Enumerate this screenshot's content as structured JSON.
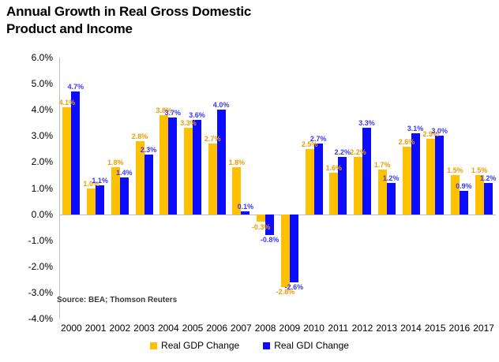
{
  "title_lines": [
    "Annual Growth in Real Gross Domestic",
    "Product and Income"
  ],
  "source_note": "Source: BEA; Thomson Reuters",
  "colors": {
    "gdp_bar": "#FFC000",
    "gdi_bar": "#0B0BFF",
    "gdp_label": "#EE9C00",
    "gdi_label": "#3838FF",
    "axis_line": "#BFBFBF",
    "title_text": "#000000",
    "source_text": "#3A3A3A"
  },
  "chart_data": {
    "type": "bar",
    "title": "Annual Growth in Real Gross Domestic Product and Income",
    "categories": [
      "2000",
      "2001",
      "2002",
      "2003",
      "2004",
      "2005",
      "2006",
      "2007",
      "2008",
      "2009",
      "2010",
      "2011",
      "2012",
      "2013",
      "2014",
      "2015",
      "2016",
      "2017"
    ],
    "series": [
      {
        "name": "Real GDP Change",
        "color": "#FFC000",
        "label_color": "#EE9C00",
        "values": [
          4.1,
          1.0,
          1.8,
          2.8,
          3.8,
          3.3,
          2.7,
          1.8,
          -0.3,
          -2.8,
          2.5,
          1.6,
          2.2,
          1.7,
          2.6,
          2.9,
          1.5,
          1.5
        ]
      },
      {
        "name": "Real GDI Change",
        "color": "#0B0BFF",
        "label_color": "#3838FF",
        "values": [
          4.7,
          1.1,
          1.4,
          2.3,
          3.7,
          3.6,
          4.0,
          0.1,
          -0.8,
          -2.6,
          2.7,
          2.2,
          3.3,
          1.2,
          3.1,
          3.0,
          0.9,
          1.2
        ]
      }
    ],
    "ylim": [
      -4.0,
      6.0
    ],
    "ytick_step": 1.0,
    "ytick_labels": [
      "6.0%",
      "5.0%",
      "4.0%",
      "3.0%",
      "2.0%",
      "1.0%",
      "0.0%",
      "-1.0%",
      "-2.0%",
      "-3.0%",
      "-4.0%"
    ],
    "data_labels": true,
    "label_suffix": "%",
    "grid": false,
    "legend_position": "bottom"
  }
}
